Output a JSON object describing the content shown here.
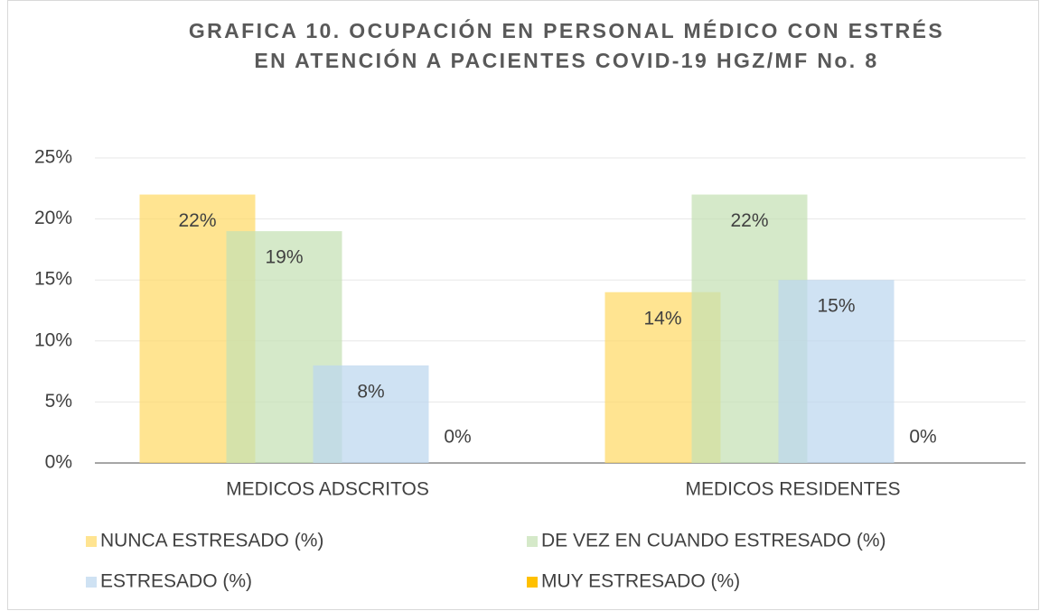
{
  "chart_data": {
    "type": "bar",
    "title": "GRAFICA 10. OCUPACIÓN EN PERSONAL MÉDICO CON ESTRÉS EN ATENCIÓN A PACIENTES COVID-19 HGZ/MF No. 8",
    "categories": [
      "MEDICOS ADSCRITOS",
      "MEDICOS RESIDENTES"
    ],
    "series": [
      {
        "name": "NUNCA ESTRESADO (%)",
        "color": "#ffd966",
        "values": [
          22,
          14
        ],
        "value_labels": [
          "22%",
          "14%"
        ]
      },
      {
        "name": "DE VEZ EN CUANDO ESTRESADO (%)",
        "color": "#c5e0b4",
        "values": [
          19,
          22
        ],
        "value_labels": [
          "19%",
          "22%"
        ]
      },
      {
        "name": "ESTRESADO (%)",
        "color": "#bdd7ee",
        "values": [
          8,
          15
        ],
        "value_labels": [
          "8%",
          "15%"
        ]
      },
      {
        "name": "MUY ESTRESADO (%)",
        "color": "#ffc000",
        "values": [
          0,
          0
        ],
        "value_labels": [
          "0%",
          "0%"
        ]
      }
    ],
    "ylim": [
      0,
      25
    ],
    "yticks": [
      {
        "value": 0,
        "label": "0%"
      },
      {
        "value": 5,
        "label": "5%"
      },
      {
        "value": 10,
        "label": "10%"
      },
      {
        "value": 15,
        "label": "15%"
      },
      {
        "value": 20,
        "label": "20%"
      },
      {
        "value": 25,
        "label": "25%"
      }
    ],
    "grid": true,
    "legend": "bottom"
  }
}
